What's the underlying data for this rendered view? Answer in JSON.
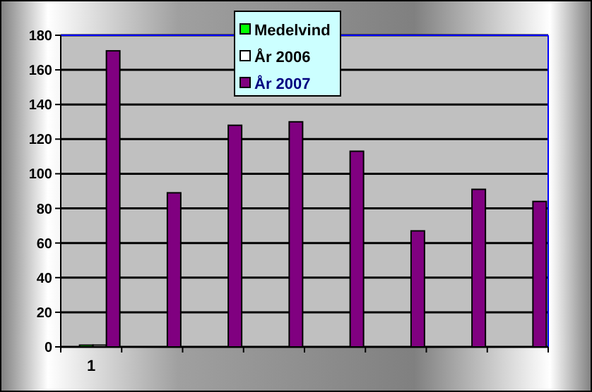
{
  "chart_data": {
    "type": "bar",
    "categories": [
      "1",
      null,
      null,
      null,
      null,
      null,
      null,
      null
    ],
    "series": [
      {
        "name": "Medelvind",
        "color": "#00ff00",
        "values": [
          1,
          null,
          null,
          null,
          null,
          null,
          null,
          null
        ]
      },
      {
        "name": "År 2006",
        "color": "#ffffff",
        "values": [
          1,
          null,
          null,
          null,
          null,
          null,
          null,
          null
        ]
      },
      {
        "name": "År 2007",
        "color": "#800080",
        "values": [
          171,
          89,
          128,
          130,
          113,
          67,
          91,
          84
        ]
      }
    ],
    "ylim": [
      0,
      180
    ],
    "yticks": [
      0,
      20,
      40,
      60,
      80,
      100,
      120,
      140,
      160,
      180
    ],
    "grid": "y",
    "legend": "top"
  }
}
